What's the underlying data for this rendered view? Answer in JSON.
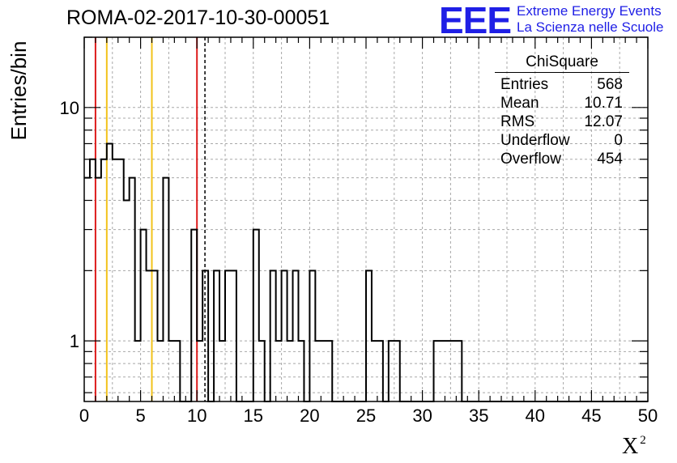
{
  "header": {
    "run_title": "ROMA-02-2017-10-30-00051",
    "logo_mark": "EEE",
    "logo_line1": "Extreme Energy Events",
    "logo_line2": "La Scienza nelle Scuole"
  },
  "stats_box": {
    "title": "ChiSquare",
    "rows": [
      {
        "label": "Entries",
        "value": "568"
      },
      {
        "label": "Mean",
        "value": "10.71"
      },
      {
        "label": "RMS",
        "value": "12.07"
      },
      {
        "label": "Underflow",
        "value": "0"
      },
      {
        "label": "Overflow",
        "value": "454"
      }
    ]
  },
  "chart_data": {
    "type": "histogram",
    "title": "ROMA-02-2017-10-30-00051",
    "xlabel": "X",
    "xlabel_superscript": "2",
    "ylabel": "Entries/bin",
    "xlim": [
      0,
      50
    ],
    "ylim": [
      0.55,
      20
    ],
    "y_scale": "log",
    "grid": true,
    "bin_width": 0.5,
    "x_ticks": [
      0,
      5,
      10,
      15,
      20,
      25,
      30,
      35,
      40,
      45,
      50
    ],
    "y_tick_labels": [
      {
        "value": 1,
        "label": "1"
      },
      {
        "value": 10,
        "label": "10"
      }
    ],
    "counts": [
      5,
      6,
      5,
      6,
      7,
      6,
      6,
      4,
      5,
      1,
      3,
      2,
      2,
      1,
      5,
      1,
      1,
      0,
      0,
      3,
      1,
      2,
      0,
      2,
      1,
      2,
      2,
      0,
      0,
      0,
      3,
      1,
      0,
      2,
      1,
      2,
      1,
      2,
      1,
      0,
      2,
      1,
      1,
      1,
      0,
      0,
      0,
      0,
      0,
      0,
      2,
      1,
      1,
      0,
      1,
      1,
      0,
      0,
      0,
      0,
      0,
      0,
      1,
      1,
      1,
      1,
      1,
      0,
      0,
      0,
      0,
      0,
      0,
      0,
      0,
      0,
      0,
      0,
      0,
      0,
      0,
      0,
      0,
      0,
      0,
      0,
      0,
      0,
      0,
      0,
      0,
      0,
      0,
      0,
      0,
      0,
      0,
      0,
      0,
      0
    ],
    "vertical_lines": [
      {
        "x": 1,
        "color": "#dd1c1c",
        "style": "solid"
      },
      {
        "x": 2,
        "color": "#f2c21b",
        "style": "solid"
      },
      {
        "x": 6,
        "color": "#f2c21b",
        "style": "solid"
      },
      {
        "x": 10,
        "color": "#dd1c1c",
        "style": "solid"
      },
      {
        "x": 10.71,
        "color": "#000000",
        "style": "dashed"
      }
    ]
  }
}
